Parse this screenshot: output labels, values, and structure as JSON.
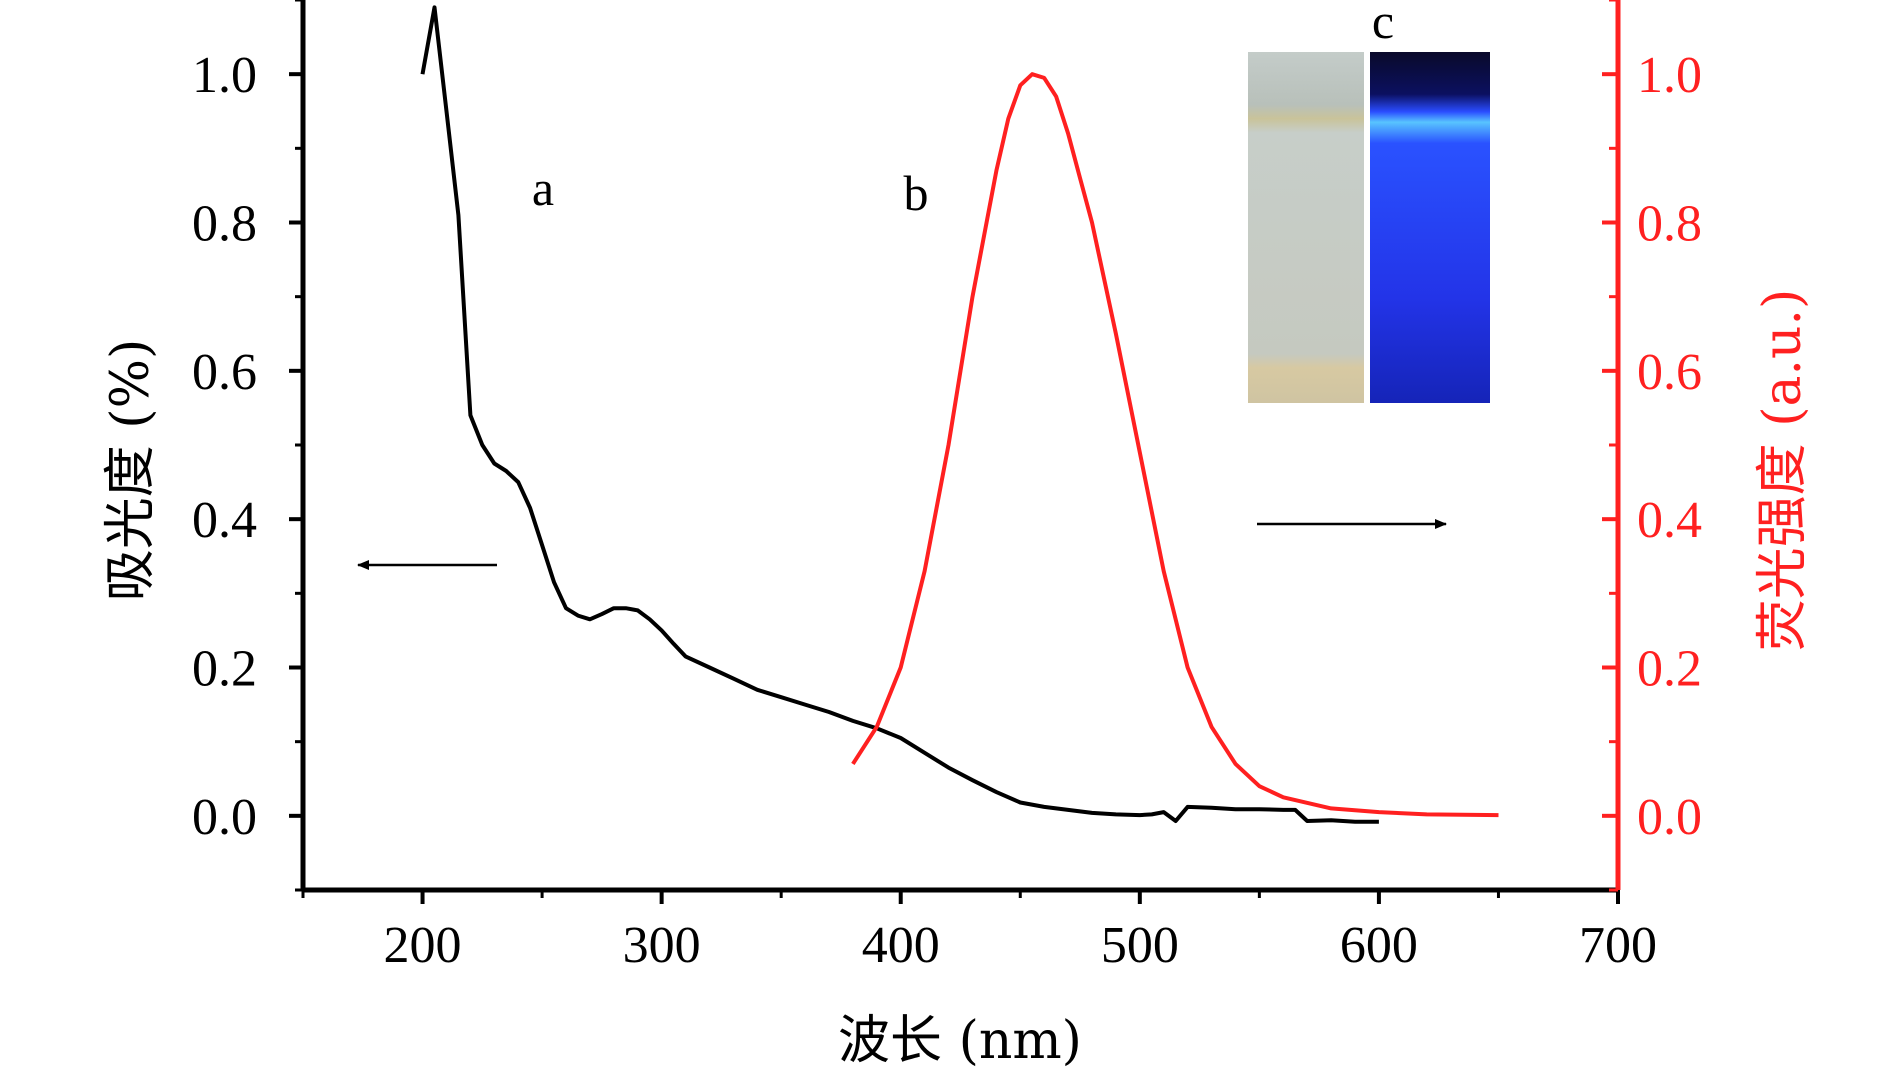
{
  "chart_data": {
    "type": "line",
    "xlabel": "波长 (nm)",
    "ylabel_left": "吸光度 (%)",
    "ylabel_right": "荧光强度 (a.u.)",
    "xlim": [
      150,
      700
    ],
    "ylim_left": [
      -0.1,
      1.1
    ],
    "ylim_right": [
      -0.1,
      1.1
    ],
    "x_ticks": [
      200,
      300,
      400,
      500,
      600,
      700
    ],
    "y_ticks_left": [
      "0.0",
      "0.2",
      "0.4",
      "0.6",
      "0.8",
      "1.0"
    ],
    "y_ticks_right": [
      "0.0",
      "0.2",
      "0.4",
      "0.6",
      "0.8",
      "1.0"
    ],
    "colors": {
      "left_axis": "#000000",
      "right_axis": "#ff2020"
    },
    "series": [
      {
        "name": "a",
        "label": "a",
        "axis": "left",
        "color": "#000000",
        "x": [
          200,
          205,
          210,
          215,
          220,
          225,
          230,
          235,
          240,
          245,
          250,
          255,
          260,
          265,
          270,
          275,
          280,
          285,
          290,
          295,
          300,
          305,
          310,
          320,
          330,
          340,
          350,
          360,
          370,
          380,
          390,
          400,
          410,
          420,
          430,
          440,
          450,
          460,
          470,
          480,
          490,
          500,
          505,
          510,
          515,
          520,
          530,
          540,
          550,
          560,
          565,
          570,
          580,
          590,
          600
        ],
        "values": [
          1.0,
          1.09,
          0.95,
          0.81,
          0.54,
          0.5,
          0.475,
          0.465,
          0.45,
          0.415,
          0.365,
          0.315,
          0.28,
          0.27,
          0.265,
          0.272,
          0.28,
          0.28,
          0.277,
          0.265,
          0.25,
          0.232,
          0.215,
          0.2,
          0.185,
          0.17,
          0.16,
          0.15,
          0.14,
          0.128,
          0.118,
          0.105,
          0.085,
          0.065,
          0.048,
          0.032,
          0.018,
          0.012,
          0.008,
          0.004,
          0.002,
          0.001,
          0.002,
          0.005,
          -0.007,
          0.012,
          0.011,
          0.009,
          0.009,
          0.008,
          0.008,
          -0.007,
          -0.006,
          -0.008,
          -0.008
        ]
      },
      {
        "name": "b",
        "label": "b",
        "axis": "right",
        "color": "#ff2020",
        "x": [
          380,
          390,
          400,
          410,
          420,
          430,
          440,
          445,
          450,
          455,
          460,
          465,
          470,
          475,
          480,
          490,
          500,
          510,
          520,
          530,
          540,
          550,
          560,
          580,
          600,
          620,
          650
        ],
        "values": [
          0.07,
          0.12,
          0.2,
          0.33,
          0.5,
          0.7,
          0.87,
          0.94,
          0.985,
          1.0,
          0.995,
          0.97,
          0.92,
          0.86,
          0.8,
          0.65,
          0.49,
          0.33,
          0.2,
          0.12,
          0.07,
          0.04,
          0.025,
          0.01,
          0.005,
          0.002,
          0.001
        ]
      }
    ],
    "annotations": {
      "label_a": "a",
      "label_b": "b",
      "label_c": "c",
      "arrow_left_direction": "left",
      "arrow_right_direction": "right"
    },
    "inset": {
      "label": "c",
      "panels": [
        "cuvette-daylight",
        "cuvette-uv-blue-fluorescence"
      ]
    }
  }
}
